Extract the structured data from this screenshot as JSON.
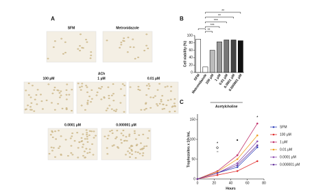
{
  "panel_a": {
    "letter": "A",
    "top_labels": [
      "SFM",
      "Metronidazole"
    ],
    "group_label": "ACh",
    "row2_labels": [
      "100 μM",
      "1 μM",
      "0.01 μM"
    ],
    "row3_labels": [
      "0.0001 μM",
      "0.000001 μM"
    ]
  },
  "chart_data": [
    {
      "type": "bar",
      "letter": "B",
      "y_label": "Cell viability (%)",
      "group_label": "Acetylcholine",
      "categories": [
        "SFM",
        "Metronidazole",
        "100 μM",
        "1 μM",
        "0.01 μM",
        "0.0001 μM",
        "0.000001 μM"
      ],
      "values": [
        90,
        15,
        60,
        83,
        88,
        88,
        86
      ],
      "colors": [
        "#ffffff",
        "#ffffff",
        "#bbbbbb",
        "#999999",
        "#777777",
        "#444444",
        "#111111"
      ],
      "ylim": [
        0,
        100
      ],
      "yticks": [
        0,
        20,
        40,
        60,
        80,
        100
      ],
      "significance": [
        "**",
        "**",
        "***",
        "***",
        "**"
      ]
    },
    {
      "type": "line",
      "letter": "C",
      "x_label": "Hours",
      "y_label": "Trophozoites x 10⁵/mL",
      "x": [
        0,
        24,
        48,
        72
      ],
      "series": [
        {
          "name": "SFM",
          "color": "#3344bb",
          "values": [
            0,
            15,
            30,
            80
          ]
        },
        {
          "name": "100 μM",
          "color": "#e03030",
          "values": [
            0,
            10,
            20,
            45
          ]
        },
        {
          "name": "1 μM",
          "color": "#c0306a",
          "values": [
            0,
            20,
            60,
            140
          ]
        },
        {
          "name": "0.01 μM",
          "color": "#f0a020",
          "values": [
            0,
            18,
            50,
            110
          ]
        },
        {
          "name": "0.0001 μM",
          "color": "#9050b0",
          "values": [
            0,
            15,
            40,
            95
          ]
        },
        {
          "name": "0.000001 μM",
          "color": "#6a3aa0",
          "values": [
            0,
            15,
            35,
            85
          ]
        }
      ],
      "xlim": [
        0,
        80
      ],
      "xticks": [
        0,
        20,
        40,
        60,
        80
      ],
      "ylim": [
        0,
        150
      ],
      "yticks": [
        0,
        50,
        100,
        150
      ],
      "annotations": [
        "*",
        "◇",
        "○",
        "●",
        "*"
      ]
    }
  ]
}
